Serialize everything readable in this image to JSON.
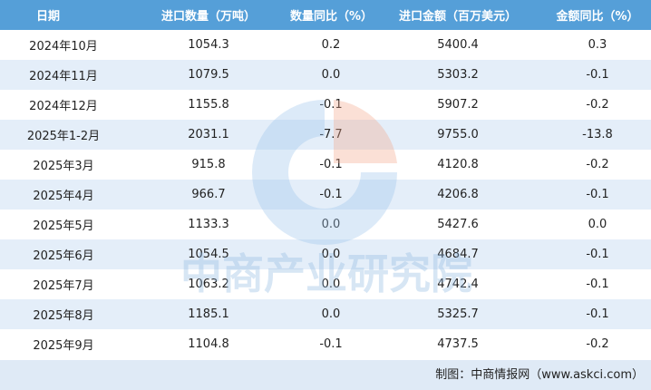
{
  "table": {
    "header": [
      "日期",
      "进口数量（万吨）",
      "数量同比（%）",
      "进口金额（百万美元）",
      "金额同比（%）"
    ],
    "rows": [
      [
        "2024年10月",
        "1054.3",
        "0.2",
        "5400.4",
        "0.3"
      ],
      [
        "2024年11月",
        "1079.5",
        "0.0",
        "5303.2",
        "-0.1"
      ],
      [
        "2024年12月",
        "1155.8",
        "-0.1",
        "5907.2",
        "-0.2"
      ],
      [
        "2025年1-2月",
        "2031.1",
        "-7.7",
        "9755.0",
        "-13.8"
      ],
      [
        "2025年3月",
        "915.8",
        "-0.1",
        "4120.8",
        "-0.2"
      ],
      [
        "2025年4月",
        "966.7",
        "-0.1",
        "4206.8",
        "-0.1"
      ],
      [
        "2025年5月",
        "1133.3",
        "0.0",
        "5427.6",
        "0.0"
      ],
      [
        "2025年6月",
        "1054.5",
        "0.0",
        "4684.7",
        "-0.1"
      ],
      [
        "2025年7月",
        "1063.2",
        "0.0",
        "4742.4",
        "-0.1"
      ],
      [
        "2025年8月",
        "1185.1",
        "0.0",
        "5325.7",
        "-0.1"
      ],
      [
        "2025年9月",
        "1104.8",
        "-0.1",
        "4737.5",
        "-0.2"
      ]
    ]
  },
  "watermark": "中商产业研究院",
  "footer": "制图：中商情报网（www.askci.com）"
}
